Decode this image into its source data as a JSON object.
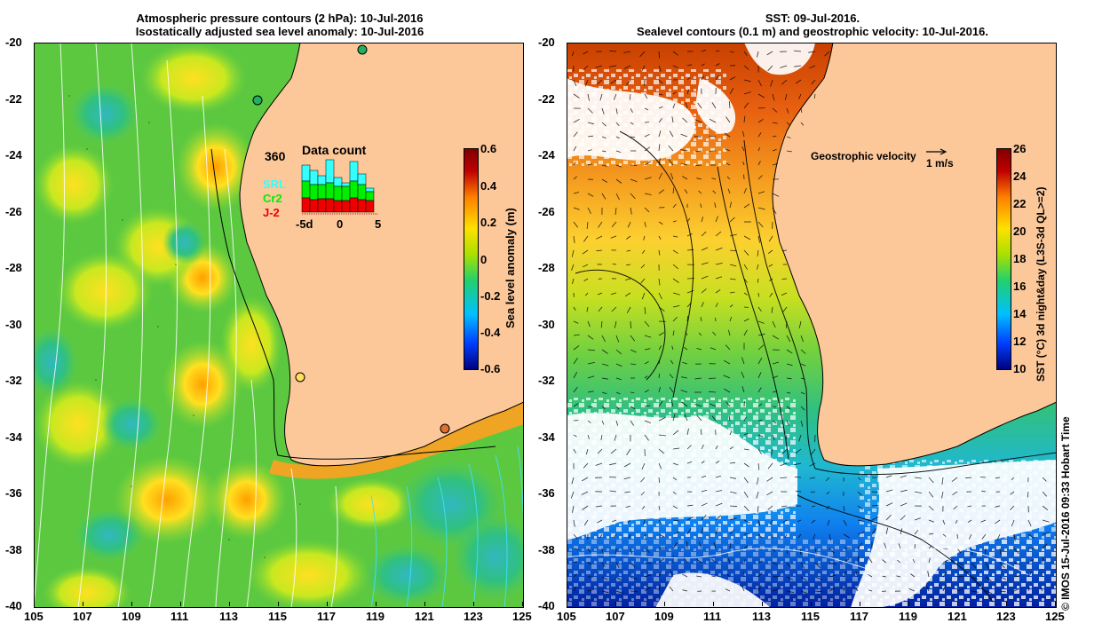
{
  "left_panel": {
    "title_line1": "Atmospheric pressure contours (2 hPa): 10-Jul-2016",
    "title_line2": "Isostatically adjusted sea level anomaly: 10-Jul-2016",
    "colorbar": {
      "label": "Sea level anomaly (m)",
      "ticks": [
        "0.6",
        "0.4",
        "0.2",
        "0",
        "-0.2",
        "-0.4",
        "-0.6"
      ],
      "colors": [
        "#000080",
        "#0040ff",
        "#00c0ff",
        "#20d070",
        "#a8e000",
        "#ffe000",
        "#ff8000",
        "#c00000",
        "#800000"
      ]
    },
    "inset": {
      "max_label": "360",
      "title": "Data count",
      "legend": [
        {
          "name": "SRL",
          "color": "#33ffff"
        },
        {
          "name": "Cr2",
          "color": "#00ee00"
        },
        {
          "name": "J-2",
          "color": "#ee0000"
        }
      ],
      "x_labels": [
        "-5d",
        "0",
        "5"
      ]
    }
  },
  "right_panel": {
    "title_line1": "SST: 09-Jul-2016.",
    "title_line2": "Sealevel contours (0.1 m) and geostrophic velocity: 10-Jul-2016.",
    "colorbar": {
      "label": "SST (°C) 3d night&day (L3S-3d QL>=2)",
      "ticks": [
        "26",
        "24",
        "22",
        "20",
        "18",
        "16",
        "14",
        "12",
        "10"
      ],
      "colors": [
        "#000080",
        "#0040ff",
        "#00c0ff",
        "#20d070",
        "#a8e000",
        "#ffe000",
        "#ff8000",
        "#c00000",
        "#800000"
      ]
    },
    "velocity_label": "Geostrophic velocity",
    "velocity_scale": "1 m/s"
  },
  "x_ticks": [
    "105",
    "107",
    "109",
    "111",
    "113",
    "115",
    "117",
    "119",
    "121",
    "123",
    "125"
  ],
  "y_ticks": [
    "-20",
    "-22",
    "-24",
    "-26",
    "-28",
    "-30",
    "-32",
    "-34",
    "-36",
    "-38",
    "-40"
  ],
  "credit": "© IMOS 15-Jul-2016 09:33 Hobart Time",
  "colors": {
    "land": "#fcc89a",
    "sla_base": "#5cd030",
    "sst_base": "#f0a020"
  }
}
